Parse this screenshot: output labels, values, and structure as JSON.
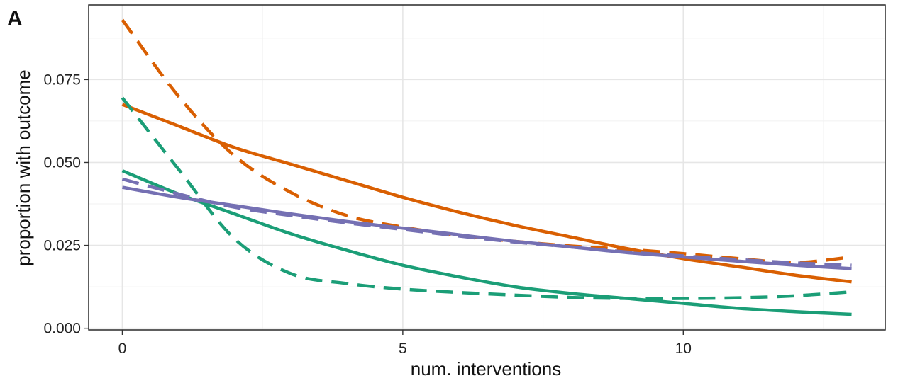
{
  "panel_label": "A",
  "chart_data": {
    "type": "line",
    "xlabel": "num. interventions",
    "ylabel": "proportion with outcome",
    "xlim": [
      -0.6,
      13.6
    ],
    "ylim": [
      -0.0005,
      0.0975
    ],
    "x_ticks": [
      0,
      5,
      10
    ],
    "x_tick_labels": [
      "0",
      "5",
      "10"
    ],
    "y_ticks": [
      0,
      0.025,
      0.05,
      0.075
    ],
    "y_tick_labels": [
      "0.000",
      "0.025",
      "0.050",
      "0.075"
    ],
    "grid": true,
    "legend": "none",
    "series": [
      {
        "color": "#d95f02",
        "dash": "solid",
        "x": [
          0,
          1,
          2,
          3,
          4,
          5,
          6,
          7,
          8,
          9,
          10,
          11,
          12,
          13
        ],
        "y": [
          0.0675,
          0.061,
          0.0545,
          0.0495,
          0.0445,
          0.0395,
          0.035,
          0.031,
          0.0275,
          0.024,
          0.021,
          0.0185,
          0.016,
          0.014
        ]
      },
      {
        "color": "#d95f02",
        "dash": "dashed",
        "x": [
          0,
          1,
          2,
          3,
          4,
          5,
          6,
          7,
          8,
          9,
          10,
          11,
          12,
          13
        ],
        "y": [
          0.093,
          0.07,
          0.052,
          0.041,
          0.034,
          0.0305,
          0.028,
          0.0262,
          0.0248,
          0.0238,
          0.0225,
          0.021,
          0.0198,
          0.0215
        ]
      },
      {
        "color": "#1b9e77",
        "dash": "solid",
        "x": [
          0,
          1,
          2,
          3,
          4,
          5,
          6,
          7,
          8,
          9,
          10,
          11,
          12,
          13
        ],
        "y": [
          0.0475,
          0.0405,
          0.0345,
          0.0285,
          0.0235,
          0.019,
          0.0155,
          0.0125,
          0.0105,
          0.009,
          0.0075,
          0.006,
          0.005,
          0.0042
        ]
      },
      {
        "color": "#1b9e77",
        "dash": "dashed",
        "x": [
          0,
          1,
          2,
          3,
          4,
          5,
          6,
          7,
          8,
          9,
          10,
          11,
          12,
          13
        ],
        "y": [
          0.0695,
          0.048,
          0.027,
          0.0165,
          0.0135,
          0.0118,
          0.0108,
          0.01,
          0.0093,
          0.009,
          0.009,
          0.0092,
          0.0098,
          0.011
        ]
      },
      {
        "color": "#7570b3",
        "dash": "solid",
        "x": [
          0,
          1,
          2,
          3,
          4,
          5,
          6,
          7,
          8,
          9,
          10,
          11,
          12,
          13
        ],
        "y": [
          0.0425,
          0.0395,
          0.037,
          0.0345,
          0.0322,
          0.0302,
          0.0282,
          0.0262,
          0.0245,
          0.0228,
          0.0215,
          0.0202,
          0.019,
          0.018
        ]
      },
      {
        "color": "#7570b3",
        "dash": "dashed",
        "x": [
          0,
          1,
          2,
          3,
          4,
          5,
          6,
          7,
          8,
          9,
          10,
          11,
          12,
          13
        ],
        "y": [
          0.045,
          0.0405,
          0.0365,
          0.034,
          0.0318,
          0.0298,
          0.0278,
          0.026,
          0.0245,
          0.023,
          0.0218,
          0.0207,
          0.0197,
          0.019
        ]
      }
    ]
  }
}
